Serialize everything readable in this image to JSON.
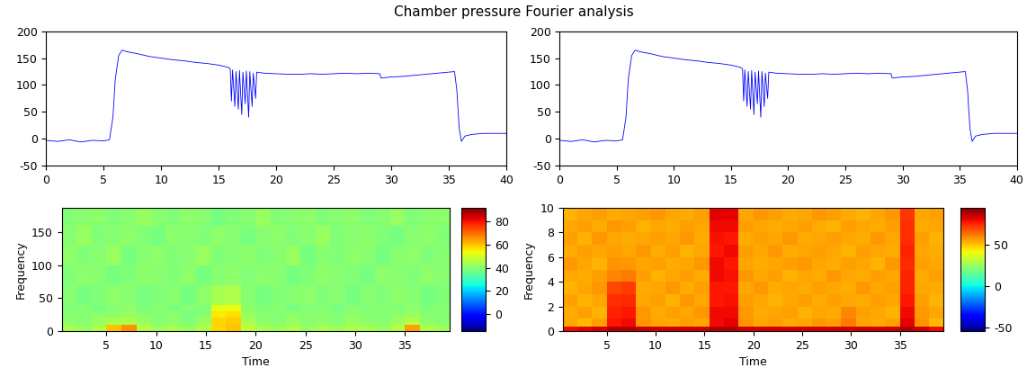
{
  "title": "Chamber pressure Fourier analysis",
  "chart_data": [
    {
      "type": "line",
      "color": "#0000ff",
      "x": [
        0,
        1,
        2,
        3,
        4,
        5,
        5.5,
        5.8,
        6.0,
        6.3,
        6.6,
        7,
        8,
        9,
        10,
        11,
        12,
        13,
        14,
        15,
        15.8,
        16.0,
        16.1,
        16.2,
        16.4,
        16.5,
        16.7,
        16.8,
        17.0,
        17.1,
        17.3,
        17.4,
        17.6,
        17.7,
        17.9,
        18.0,
        18.2,
        18.3,
        18.6,
        19,
        20,
        21,
        22,
        23,
        24,
        25,
        26,
        27,
        28,
        29,
        29.1,
        30,
        31,
        32,
        33,
        34,
        35,
        35.5,
        35.7,
        35.9,
        36.1,
        36.4,
        37,
        38,
        39,
        40
      ],
      "values": [
        -3,
        -5,
        -2,
        -6,
        -3,
        -4,
        -2,
        40,
        110,
        155,
        165,
        162,
        158,
        153,
        150,
        147,
        145,
        142,
        140,
        137,
        133,
        130,
        70,
        128,
        60,
        125,
        55,
        127,
        45,
        124,
        65,
        126,
        40,
        125,
        60,
        122,
        75,
        124,
        123,
        122,
        121,
        120,
        120,
        121,
        120,
        121,
        122,
        121,
        122,
        121,
        113,
        115,
        116,
        118,
        120,
        122,
        124,
        125,
        90,
        20,
        -5,
        5,
        8,
        10,
        10,
        10
      ],
      "xlim": [
        0,
        40
      ],
      "ylim": [
        -50,
        200
      ],
      "xticks": [
        0,
        5,
        10,
        15,
        20,
        25,
        30,
        35,
        40
      ],
      "yticks": [
        -50,
        0,
        50,
        100,
        150,
        200
      ]
    },
    {
      "type": "line",
      "color": "#0000ff",
      "x": [
        0,
        1,
        2,
        3,
        4,
        5,
        5.5,
        5.8,
        6.0,
        6.3,
        6.6,
        7,
        8,
        9,
        10,
        11,
        12,
        13,
        14,
        15,
        15.8,
        16.0,
        16.1,
        16.2,
        16.4,
        16.5,
        16.7,
        16.8,
        17.0,
        17.1,
        17.3,
        17.4,
        17.6,
        17.7,
        17.9,
        18.0,
        18.2,
        18.3,
        18.6,
        19,
        20,
        21,
        22,
        23,
        24,
        25,
        26,
        27,
        28,
        29,
        29.1,
        30,
        31,
        32,
        33,
        34,
        35,
        35.5,
        35.7,
        35.9,
        36.1,
        36.4,
        37,
        38,
        39,
        40
      ],
      "values": [
        -3,
        -5,
        -2,
        -6,
        -3,
        -4,
        -2,
        40,
        110,
        155,
        165,
        162,
        158,
        153,
        150,
        147,
        145,
        142,
        140,
        137,
        133,
        130,
        70,
        128,
        60,
        125,
        55,
        127,
        45,
        124,
        65,
        126,
        40,
        125,
        60,
        122,
        75,
        124,
        123,
        122,
        121,
        120,
        120,
        121,
        120,
        121,
        122,
        121,
        122,
        121,
        113,
        115,
        116,
        118,
        120,
        122,
        124,
        125,
        90,
        20,
        -5,
        5,
        8,
        10,
        10,
        10
      ],
      "xlim": [
        0,
        40
      ],
      "ylim": [
        -50,
        200
      ],
      "xticks": [
        0,
        5,
        10,
        15,
        20,
        25,
        30,
        35,
        40
      ],
      "yticks": [
        -50,
        0,
        50,
        100,
        150,
        200
      ]
    },
    {
      "type": "heatmap",
      "xlabel": "Time",
      "ylabel": "Frequency",
      "x_edges": [
        0.5,
        2,
        3.5,
        5,
        6.5,
        8,
        9.5,
        11,
        12.5,
        14,
        15.5,
        17,
        18.5,
        20,
        21.5,
        23,
        24.5,
        26,
        27.5,
        29,
        30.5,
        32,
        33.5,
        35,
        36.5,
        38,
        39.5
      ],
      "y_edges": [
        0,
        10,
        20,
        30,
        40,
        70,
        100,
        130,
        160,
        187
      ],
      "cells": [
        [
          44,
          42,
          45,
          60,
          66,
          46,
          43,
          44,
          42,
          45,
          58,
          60,
          47,
          44,
          43,
          45,
          42,
          44,
          43,
          45,
          44,
          42,
          46,
          64,
          45,
          43
        ],
        [
          41,
          40,
          42,
          44,
          45,
          42,
          40,
          41,
          39,
          42,
          58,
          59,
          44,
          41,
          40,
          42,
          40,
          41,
          40,
          42,
          41,
          40,
          42,
          46,
          41,
          40
        ],
        [
          40,
          39,
          41,
          41,
          42,
          40,
          39,
          41,
          38,
          40,
          56,
          57,
          42,
          40,
          39,
          41,
          40,
          40,
          39,
          41,
          40,
          39,
          41,
          42,
          40,
          39
        ],
        [
          39,
          40,
          38,
          40,
          41,
          39,
          40,
          38,
          40,
          39,
          52,
          53,
          41,
          39,
          40,
          38,
          39,
          40,
          38,
          40,
          39,
          40,
          39,
          41,
          39,
          40
        ],
        [
          40,
          38,
          39,
          41,
          40,
          38,
          39,
          40,
          38,
          41,
          44,
          45,
          40,
          38,
          39,
          40,
          41,
          39,
          40,
          38,
          40,
          39,
          41,
          40,
          38,
          39
        ],
        [
          39,
          41,
          40,
          38,
          39,
          41,
          40,
          39,
          41,
          38,
          40,
          41,
          39,
          41,
          40,
          38,
          39,
          41,
          40,
          39,
          38,
          41,
          40,
          39,
          41,
          40
        ],
        [
          41,
          39,
          40,
          42,
          38,
          40,
          41,
          39,
          40,
          42,
          39,
          40,
          41,
          39,
          40,
          42,
          38,
          40,
          39,
          41,
          40,
          38,
          40,
          41,
          39,
          40
        ],
        [
          40,
          42,
          39,
          40,
          41,
          39,
          38,
          41,
          40,
          39,
          41,
          40,
          38,
          40,
          41,
          39,
          40,
          42,
          39,
          40,
          41,
          39,
          38,
          40,
          41,
          39
        ],
        [
          39,
          40,
          41,
          39,
          40,
          42,
          40,
          39,
          41,
          40,
          38,
          39,
          40,
          42,
          39,
          40,
          41,
          39,
          40,
          41,
          39,
          40,
          42,
          39,
          40,
          41
        ]
      ],
      "xlim": [
        0.5,
        39.5
      ],
      "ylim": [
        0,
        187
      ],
      "xticks": [
        5,
        10,
        15,
        20,
        25,
        30,
        35
      ],
      "yticks": [
        0,
        50,
        100,
        150
      ],
      "colorbar_range": [
        -15,
        92
      ],
      "colorbar_ticks": [
        0,
        20,
        40,
        60,
        80
      ]
    },
    {
      "type": "heatmap",
      "xlabel": "Time",
      "ylabel": "Frequency",
      "x_edges": [
        0.5,
        2,
        3.5,
        5,
        6.5,
        8,
        9.5,
        11,
        12.5,
        14,
        15.5,
        17,
        18.5,
        20,
        21.5,
        23,
        24.5,
        26,
        27.5,
        29,
        30.5,
        32,
        33.5,
        35,
        36.5,
        38,
        39.5
      ],
      "y_edges": [
        0,
        0.4,
        1,
        2,
        3,
        4,
        5,
        6,
        7,
        8,
        9,
        10
      ],
      "cells": [
        [
          80,
          82,
          84,
          88,
          88,
          86,
          85,
          85,
          84,
          85,
          88,
          88,
          85,
          84,
          85,
          84,
          85,
          84,
          85,
          84,
          85,
          84,
          85,
          88,
          85,
          80
        ],
        [
          55,
          52,
          56,
          78,
          80,
          58,
          55,
          54,
          56,
          55,
          80,
          82,
          58,
          55,
          56,
          54,
          55,
          57,
          56,
          62,
          55,
          54,
          56,
          82,
          58,
          52
        ],
        [
          54,
          56,
          53,
          76,
          78,
          57,
          54,
          56,
          55,
          57,
          80,
          80,
          57,
          54,
          55,
          56,
          53,
          55,
          54,
          60,
          56,
          55,
          53,
          80,
          57,
          55
        ],
        [
          56,
          53,
          55,
          74,
          75,
          55,
          56,
          53,
          57,
          55,
          78,
          79,
          56,
          55,
          53,
          55,
          56,
          54,
          56,
          55,
          54,
          56,
          55,
          78,
          56,
          53
        ],
        [
          53,
          55,
          57,
          70,
          72,
          54,
          55,
          57,
          54,
          56,
          78,
          78,
          55,
          57,
          54,
          55,
          54,
          56,
          55,
          54,
          57,
          55,
          56,
          76,
          55,
          54
        ],
        [
          55,
          54,
          56,
          60,
          62,
          56,
          53,
          55,
          56,
          54,
          80,
          79,
          57,
          55,
          56,
          53,
          55,
          54,
          57,
          55,
          54,
          56,
          55,
          76,
          54,
          56
        ],
        [
          57,
          55,
          53,
          58,
          57,
          55,
          56,
          54,
          55,
          57,
          80,
          78,
          55,
          54,
          55,
          56,
          57,
          55,
          54,
          56,
          55,
          53,
          57,
          75,
          56,
          55
        ],
        [
          54,
          56,
          55,
          56,
          55,
          57,
          54,
          56,
          53,
          55,
          78,
          80,
          56,
          55,
          57,
          54,
          55,
          56,
          55,
          53,
          56,
          55,
          54,
          76,
          55,
          54
        ],
        [
          56,
          53,
          57,
          55,
          54,
          55,
          56,
          55,
          57,
          54,
          79,
          78,
          54,
          56,
          55,
          57,
          54,
          55,
          56,
          55,
          54,
          57,
          55,
          74,
          56,
          53
        ],
        [
          55,
          56,
          54,
          57,
          56,
          53,
          55,
          54,
          56,
          55,
          80,
          80,
          56,
          55,
          54,
          55,
          56,
          54,
          53,
          56,
          55,
          54,
          56,
          74,
          54,
          55
        ],
        [
          53,
          55,
          56,
          54,
          55,
          56,
          57,
          55,
          54,
          56,
          82,
          81,
          55,
          57,
          56,
          54,
          55,
          57,
          56,
          54,
          53,
          55,
          57,
          73,
          55,
          56
        ]
      ],
      "xlim": [
        0.5,
        39.5
      ],
      "ylim": [
        0,
        10
      ],
      "xticks": [
        5,
        10,
        15,
        20,
        25,
        30,
        35
      ],
      "yticks": [
        0,
        2,
        4,
        6,
        8,
        10
      ],
      "colorbar_range": [
        -55,
        95
      ],
      "colorbar_ticks": [
        -50,
        0,
        50
      ]
    }
  ]
}
